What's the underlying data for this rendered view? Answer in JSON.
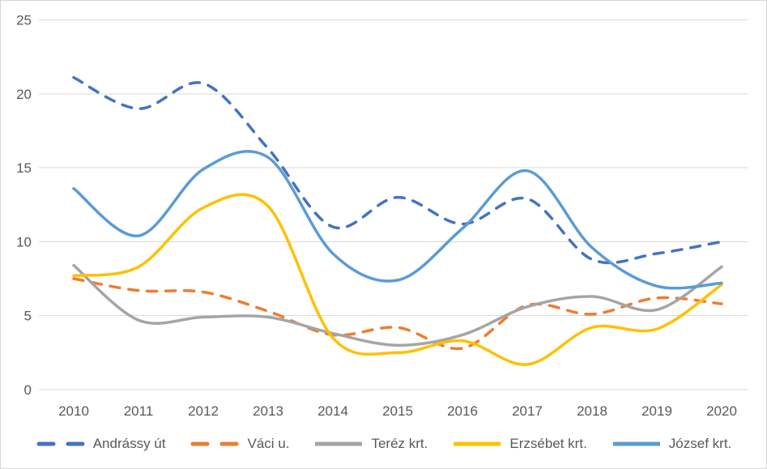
{
  "chart_data": {
    "type": "line",
    "title": "",
    "xlabel": "",
    "ylabel": "",
    "x": [
      "2010",
      "2011",
      "2012",
      "2013",
      "2014",
      "2015",
      "2016",
      "2017",
      "2018",
      "2019",
      "2020"
    ],
    "y_ticks": [
      "0",
      "5",
      "10",
      "15",
      "20",
      "25"
    ],
    "ylim": [
      0,
      25
    ],
    "grid": true,
    "smoothed_lines": true,
    "legend_position": "bottom",
    "series": [
      {
        "id": "andrassy-ut",
        "name": "Andrássy út",
        "color": "#4472C4",
        "dashed": true,
        "values": [
          21.1,
          19.0,
          20.7,
          16.3,
          11.0,
          13.0,
          11.2,
          12.9,
          8.8,
          9.2,
          10.0
        ]
      },
      {
        "id": "vaci-u",
        "name": "Váci u.",
        "color": "#ED7D31",
        "dashed": true,
        "values": [
          7.5,
          6.7,
          6.6,
          5.3,
          3.7,
          4.2,
          2.8,
          5.7,
          5.1,
          6.2,
          5.8
        ]
      },
      {
        "id": "terez-krt",
        "name": "Teréz krt.",
        "color": "#A5A5A5",
        "dashed": false,
        "values": [
          8.4,
          4.7,
          4.9,
          4.9,
          3.8,
          3.0,
          3.7,
          5.6,
          6.3,
          5.4,
          8.3
        ]
      },
      {
        "id": "erzsebet-krt",
        "name": "Erzsébet krt.",
        "color": "#FFC000",
        "dashed": false,
        "values": [
          7.7,
          8.3,
          12.3,
          12.4,
          3.5,
          2.5,
          3.3,
          1.7,
          4.2,
          4.1,
          7.1
        ]
      },
      {
        "id": "jozsef-krt",
        "name": "József krt.",
        "color": "#5B9BD5",
        "dashed": false,
        "values": [
          13.6,
          10.4,
          14.9,
          15.7,
          9.2,
          7.4,
          10.9,
          14.8,
          9.6,
          7.0,
          7.2
        ]
      }
    ],
    "colors": {
      "gridline": "#D9D9D9",
      "axis_text": "#595959",
      "background": "#FFFFFF",
      "border": "#D7D7D7"
    }
  }
}
